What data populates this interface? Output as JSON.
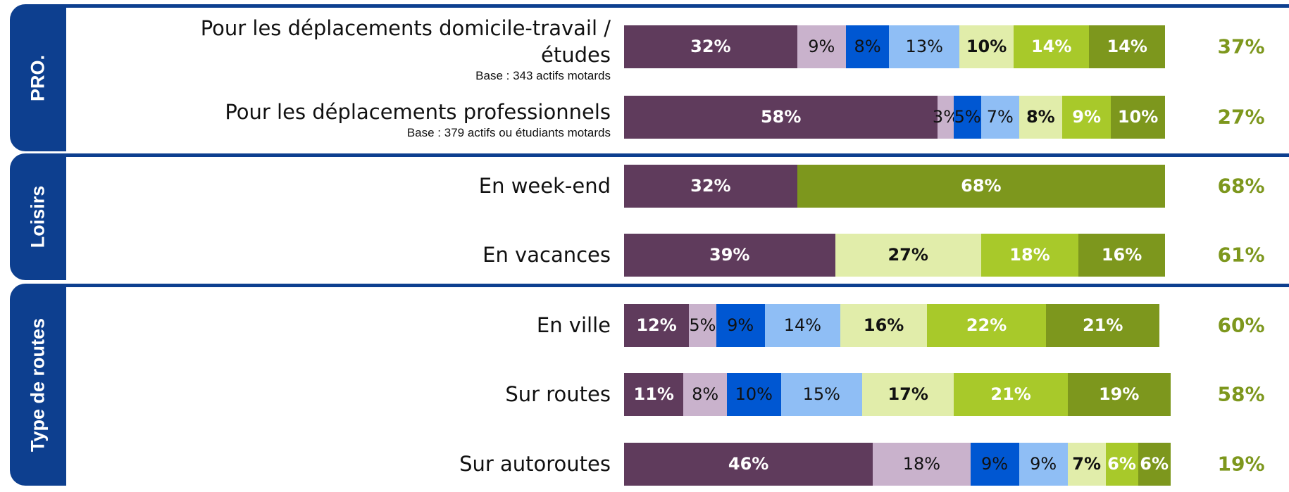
{
  "chart_data": {
    "type": "bar",
    "orientation": "horizontal",
    "stacked": true,
    "xlim": [
      0,
      100
    ],
    "colors": [
      "#5f3b5c",
      "#c9b2cc",
      "#0057d2",
      "#8fbef5",
      "#e1edaa",
      "#a8c92a",
      "#7d971d"
    ],
    "total_color": "#7d971d",
    "groups": [
      {
        "label": "PRO.",
        "rows": [
          {
            "category": "Pour les déplacements domicile-travail / études",
            "base": "Base : 343 actifs motards",
            "values": [
              32,
              9,
              8,
              13,
              10,
              14,
              14
            ],
            "value_labels": [
              "32%",
              "9%",
              "8%",
              "13%",
              "10%",
              "14%",
              "14%"
            ],
            "total": 37,
            "total_label": "37%"
          },
          {
            "category": "Pour les déplacements professionnels",
            "base": "Base : 379 actifs ou étudiants motards",
            "values": [
              58,
              3,
              5,
              7,
              8,
              9,
              10
            ],
            "value_labels": [
              "58%",
              "3%",
              "5%",
              "7%",
              "8%",
              "9%",
              "10%"
            ],
            "total": 27,
            "total_label": "27%"
          }
        ]
      },
      {
        "label": "Loisirs",
        "rows": [
          {
            "category": "En week-end",
            "values": [
              32,
              null,
              null,
              null,
              null,
              null,
              68
            ],
            "value_labels": [
              "32%",
              null,
              null,
              null,
              null,
              null,
              "68%"
            ],
            "total": 68,
            "total_label": "68%"
          },
          {
            "category": "En vacances",
            "values": [
              39,
              null,
              null,
              null,
              27,
              18,
              16
            ],
            "value_labels": [
              "39%",
              null,
              null,
              null,
              "27%",
              "18%",
              "16%"
            ],
            "total": 61,
            "total_label": "61%"
          }
        ]
      },
      {
        "label": "Type de routes",
        "rows": [
          {
            "category": "En ville",
            "values": [
              12,
              5,
              9,
              14,
              16,
              22,
              21
            ],
            "value_labels": [
              "12%",
              "5%",
              "9%",
              "14%",
              "16%",
              "22%",
              "21%"
            ],
            "total": 60,
            "total_label": "60%"
          },
          {
            "category": "Sur routes",
            "values": [
              11,
              8,
              10,
              15,
              17,
              21,
              19
            ],
            "value_labels": [
              "11%",
              "8%",
              "10%",
              "15%",
              "17%",
              "21%",
              "19%"
            ],
            "total": 58,
            "total_label": "58%"
          },
          {
            "category": "Sur autoroutes",
            "values": [
              46,
              18,
              9,
              9,
              7,
              6,
              6
            ],
            "value_labels": [
              "46%",
              "18%",
              "9%",
              "9%",
              "7%",
              "6%",
              "6%"
            ],
            "total": 19,
            "total_label": "19%"
          }
        ]
      }
    ]
  }
}
